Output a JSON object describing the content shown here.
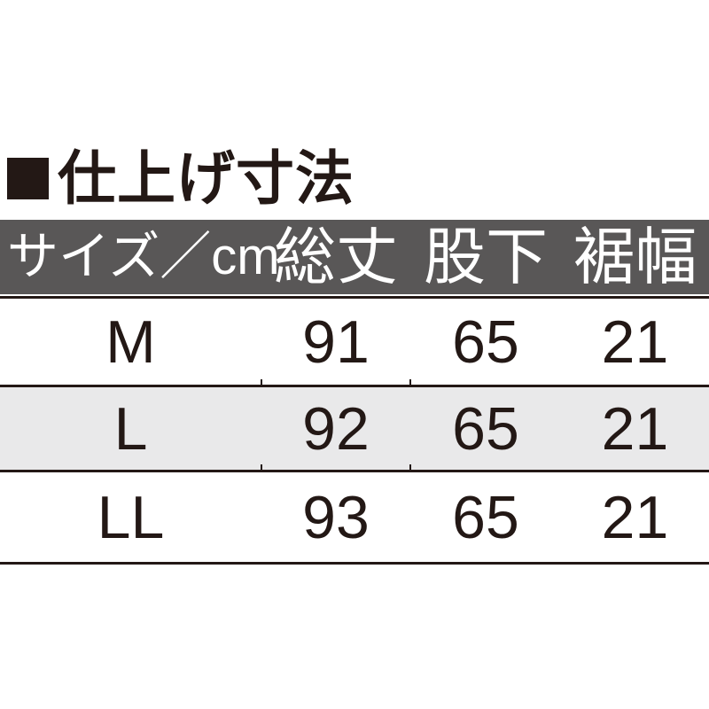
{
  "title": {
    "marker": "square-bullet",
    "label": "仕上げ寸法"
  },
  "colors": {
    "page_bg": "#ffffff",
    "header_bg": "#595757",
    "header_text": "#ffffff",
    "body_text": "#231815",
    "alt_row_bg": "#e9e9ea",
    "line": "#231815"
  },
  "chart_data": {
    "type": "table",
    "title": "仕上げ寸法",
    "unit": "cm",
    "columns": [
      "サイズ／cm",
      "総丈",
      "股下",
      "裾幅"
    ],
    "rows": [
      {
        "cells": [
          "M",
          "91",
          "65",
          "21"
        ]
      },
      {
        "cells": [
          "L",
          "92",
          "65",
          "21"
        ]
      },
      {
        "cells": [
          "LL",
          "93",
          "65",
          "21"
        ]
      }
    ]
  }
}
